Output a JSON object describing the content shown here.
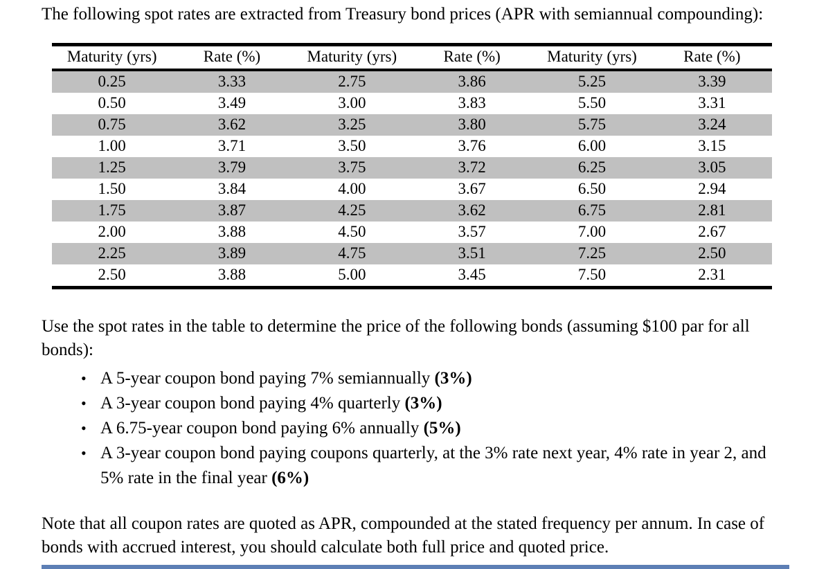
{
  "intro": "The following spot rates are extracted from Treasury bond prices (APR with semiannual compounding):",
  "table": {
    "headers": [
      "Maturity (yrs)",
      "Rate (%)",
      "Maturity (yrs)",
      "Rate (%)",
      "Maturity (yrs)",
      "Rate (%)"
    ],
    "rows": [
      [
        "0.25",
        "3.33",
        "2.75",
        "3.86",
        "5.25",
        "3.39"
      ],
      [
        "0.50",
        "3.49",
        "3.00",
        "3.83",
        "5.50",
        "3.31"
      ],
      [
        "0.75",
        "3.62",
        "3.25",
        "3.80",
        "5.75",
        "3.24"
      ],
      [
        "1.00",
        "3.71",
        "3.50",
        "3.76",
        "6.00",
        "3.15"
      ],
      [
        "1.25",
        "3.79",
        "3.75",
        "3.72",
        "6.25",
        "3.05"
      ],
      [
        "1.50",
        "3.84",
        "4.00",
        "3.67",
        "6.50",
        "2.94"
      ],
      [
        "1.75",
        "3.87",
        "4.25",
        "3.62",
        "6.75",
        "2.81"
      ],
      [
        "2.00",
        "3.88",
        "4.50",
        "3.57",
        "7.00",
        "2.67"
      ],
      [
        "2.25",
        "3.89",
        "4.75",
        "3.51",
        "7.25",
        "2.50"
      ],
      [
        "2.50",
        "3.88",
        "5.00",
        "3.45",
        "7.50",
        "2.31"
      ]
    ],
    "shaded_row_color": "#c0c0c0"
  },
  "question": "Use the spot rates in the table to determine the price of the following bonds (assuming $100 par for all bonds):",
  "bullets": [
    {
      "bullet_glyph": "•",
      "text": "A 5-year coupon bond paying 7% semiannually ",
      "answer": "(3%)"
    },
    {
      "bullet_glyph": "•",
      "text": "A 3-year coupon bond paying 4% quarterly ",
      "answer": "(3%)"
    },
    {
      "bullet_glyph": "•",
      "text": "A 6.75-year coupon bond paying 6% annually ",
      "answer": "(5%)"
    },
    {
      "bullet_glyph": "•",
      "text": "A 3-year coupon bond paying coupons quarterly, at the 3% rate next year, 4% rate in year 2, and 5% rate in the final year ",
      "answer": "(6%)"
    }
  ],
  "note": "Note that all coupon rates are quoted as APR, compounded at the stated frequency per annum. In case of bonds with accrued interest, you should calculate both full price and quoted price.",
  "bottom_bar_color": "#5d7fb5"
}
